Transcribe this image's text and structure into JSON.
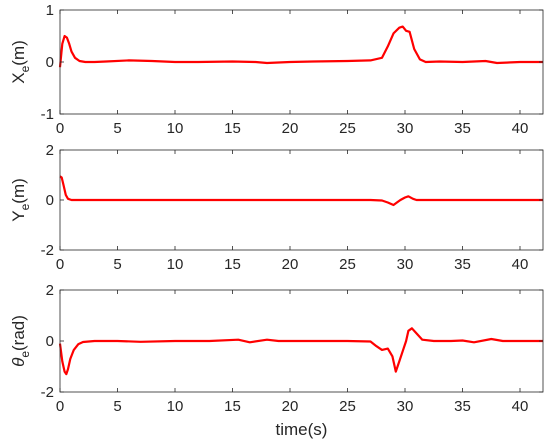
{
  "chart_data": [
    {
      "type": "line",
      "ylabel": {
        "main": "X",
        "sub": "e",
        "unit": "(m)",
        "italic": false
      },
      "xlim": [
        0,
        42
      ],
      "ylim": [
        -1,
        1
      ],
      "xticks": [
        0,
        5,
        10,
        15,
        20,
        25,
        30,
        35,
        40
      ],
      "yticks": [
        -1,
        0,
        1
      ],
      "grid": false,
      "color": "#ff0000",
      "series": [
        {
          "x": [
            0,
            0.2,
            0.4,
            0.6,
            0.8,
            1.0,
            1.3,
            1.7,
            2.2,
            3,
            4,
            6,
            8,
            10,
            12,
            15,
            17,
            18,
            20,
            22,
            25,
            27,
            28,
            28.5,
            29,
            29.5,
            29.8,
            30.1,
            30.4,
            30.8,
            31.3,
            31.8,
            33,
            35,
            37,
            38,
            40,
            42
          ],
          "y": [
            -0.1,
            0.35,
            0.5,
            0.47,
            0.35,
            0.2,
            0.08,
            0.02,
            0.0,
            0.0,
            0.01,
            0.03,
            0.02,
            0.0,
            0.0,
            0.01,
            0.0,
            -0.02,
            0.0,
            0.01,
            0.02,
            0.03,
            0.08,
            0.3,
            0.55,
            0.66,
            0.68,
            0.6,
            0.58,
            0.25,
            0.05,
            0.0,
            0.01,
            0.0,
            0.02,
            -0.02,
            0.0,
            0.0
          ]
        }
      ]
    },
    {
      "type": "line",
      "ylabel": {
        "main": "Y",
        "sub": "e",
        "unit": "(m)",
        "italic": false
      },
      "xlim": [
        0,
        42
      ],
      "ylim": [
        -2,
        2
      ],
      "xticks": [
        0,
        5,
        10,
        15,
        20,
        25,
        30,
        35,
        40
      ],
      "yticks": [
        -2,
        0,
        2
      ],
      "grid": false,
      "color": "#ff0000",
      "series": [
        {
          "x": [
            0,
            0.15,
            0.3,
            0.5,
            0.7,
            1.0,
            1.5,
            2,
            5,
            10,
            15,
            20,
            25,
            27,
            28,
            28.5,
            29,
            29.3,
            29.6,
            30,
            30.3,
            30.7,
            31,
            32,
            35,
            40,
            42
          ],
          "y": [
            0.95,
            0.9,
            0.6,
            0.2,
            0.05,
            0.0,
            0.0,
            0.0,
            0.0,
            0.0,
            0.0,
            0.0,
            0.0,
            0.0,
            -0.02,
            -0.1,
            -0.2,
            -0.1,
            0.0,
            0.1,
            0.15,
            0.05,
            0.0,
            0.0,
            0.0,
            0.0,
            0.0
          ]
        }
      ]
    },
    {
      "type": "line",
      "ylabel": {
        "main": "θ",
        "sub": "e",
        "unit": "(rad)",
        "italic": true
      },
      "xlim": [
        0,
        42
      ],
      "ylim": [
        -2,
        2
      ],
      "xticks": [
        0,
        5,
        10,
        15,
        20,
        25,
        30,
        35,
        40
      ],
      "yticks": [
        -2,
        0,
        2
      ],
      "grid": false,
      "color": "#ff0000",
      "series": [
        {
          "x": [
            0,
            0.2,
            0.4,
            0.55,
            0.7,
            0.9,
            1.2,
            1.6,
            2.0,
            2.5,
            3,
            5,
            7,
            10,
            13,
            15.5,
            16.5,
            18,
            19,
            22,
            25,
            27,
            27.5,
            28,
            28.5,
            28.9,
            29.2,
            29.5,
            29.8,
            30.1,
            30.3,
            30.6,
            31,
            31.5,
            32.5,
            34,
            35,
            36,
            37.5,
            38.5,
            40,
            42
          ],
          "y": [
            -0.1,
            -0.8,
            -1.2,
            -1.3,
            -1.1,
            -0.7,
            -0.35,
            -0.12,
            -0.04,
            -0.02,
            0.0,
            0.0,
            -0.03,
            0.0,
            0.0,
            0.05,
            -0.05,
            0.05,
            0.0,
            0.0,
            0.0,
            -0.02,
            -0.2,
            -0.35,
            -0.3,
            -0.6,
            -1.2,
            -0.8,
            -0.4,
            0.0,
            0.4,
            0.5,
            0.3,
            0.05,
            0.0,
            0.0,
            0.02,
            -0.05,
            0.08,
            0.0,
            0.0,
            0.0
          ]
        }
      ]
    }
  ],
  "xlabel": "time(s)"
}
